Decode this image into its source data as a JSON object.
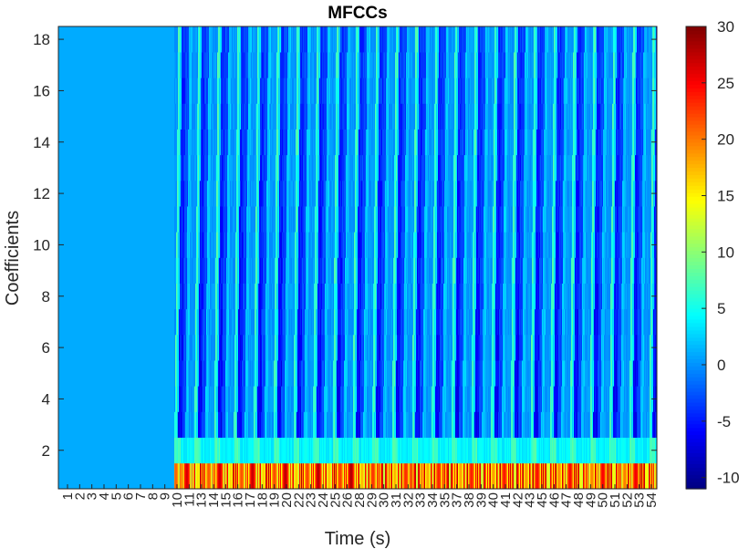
{
  "chart_data": {
    "type": "heatmap",
    "title": "MFCCs",
    "xlabel": "Time (s)",
    "ylabel": "Coefficients",
    "ylim": [
      0.5,
      18.5
    ],
    "yticks": [
      2,
      4,
      6,
      8,
      10,
      12,
      14,
      16,
      18
    ],
    "xtick_labels": [
      "1",
      "2",
      "3",
      "4",
      "5",
      "6",
      "7",
      "8",
      "9",
      "10",
      "11",
      "13",
      "14",
      "15",
      "16",
      "17",
      "18",
      "19",
      "20",
      "22",
      "23",
      "24",
      "25",
      "26",
      "28",
      "29",
      "30",
      "31",
      "32",
      "33",
      "34",
      "35",
      "37",
      "38",
      "39",
      "40",
      "41",
      "42",
      "43",
      "45",
      "46",
      "47",
      "48",
      "49",
      "50",
      "51",
      "52",
      "53",
      "54"
    ],
    "coefficients": 18,
    "silent_until_tick": "10",
    "silent_value": 1,
    "coefficient_1_range": [
      12,
      28
    ],
    "coefficient_2_value": 4,
    "colorbar": {
      "colormap": "jet",
      "min": -11,
      "max": 30,
      "ticks": [
        -10,
        -5,
        0,
        5,
        10,
        15,
        20,
        25,
        30
      ]
    },
    "grid": false
  }
}
